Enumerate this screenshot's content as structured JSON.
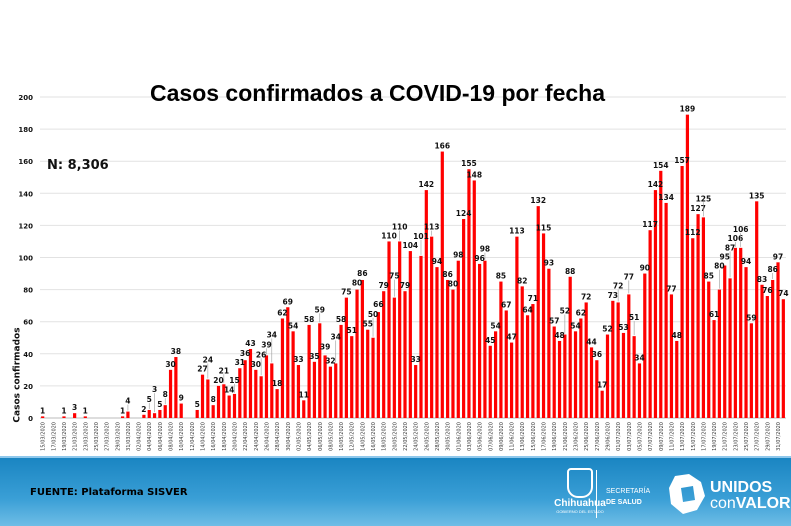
{
  "chart_data": {
    "type": "bar",
    "title": "Casos confirmados a COVID-19 por fecha",
    "annotation": "N: 8,306",
    "xlabel": "",
    "ylabel": "Casos confirmados",
    "ylim": [
      0,
      200
    ],
    "yticks": [
      0,
      20,
      40,
      60,
      80,
      100,
      120,
      140,
      160,
      180,
      200
    ],
    "grid": true,
    "bar_color": "#ff0000",
    "start_date": "15/03/2020",
    "categories_note": "daily from 15/03/2020 to 01/08/2020; tick labels every 2 days",
    "values": [
      1,
      0,
      0,
      0,
      1,
      0,
      3,
      0,
      1,
      0,
      0,
      0,
      0,
      0,
      0,
      1,
      4,
      0,
      0,
      2,
      5,
      3,
      5,
      8,
      30,
      38,
      9,
      0,
      0,
      5,
      27,
      24,
      8,
      20,
      21,
      14,
      15,
      31,
      36,
      43,
      30,
      26,
      39,
      34,
      18,
      62,
      69,
      54,
      33,
      11,
      58,
      35,
      59,
      39,
      32,
      34,
      58,
      75,
      51,
      80,
      86,
      55,
      50,
      66,
      79,
      110,
      75,
      110,
      79,
      104,
      33,
      101,
      142,
      113,
      94,
      166,
      86,
      80,
      98,
      124,
      155,
      148,
      96,
      98,
      45,
      54,
      85,
      67,
      47,
      113,
      82,
      64,
      71,
      132,
      115,
      93,
      57,
      48,
      52,
      88,
      54,
      62,
      72,
      44,
      36,
      17,
      52,
      73,
      72,
      53,
      77,
      51,
      34,
      90,
      117,
      142,
      154,
      134,
      77,
      48,
      157,
      189,
      112,
      127,
      125,
      85,
      61,
      80,
      95,
      87,
      106,
      106,
      94,
      59,
      135,
      83,
      76,
      86,
      97,
      74
    ]
  },
  "footer": {
    "source": "FUENTE: Plataforma SISVER",
    "logo_chihuahua": "Chihuahua",
    "logo_chihuahua_sub": "GOBIERNO DEL ESTADO",
    "secretaria_line1": "SECRETARÍA",
    "secretaria_line2": "DE SALUD",
    "unidos_line1": "UNIDOS",
    "unidos_con": "con",
    "unidos_valor": "VALOR"
  }
}
